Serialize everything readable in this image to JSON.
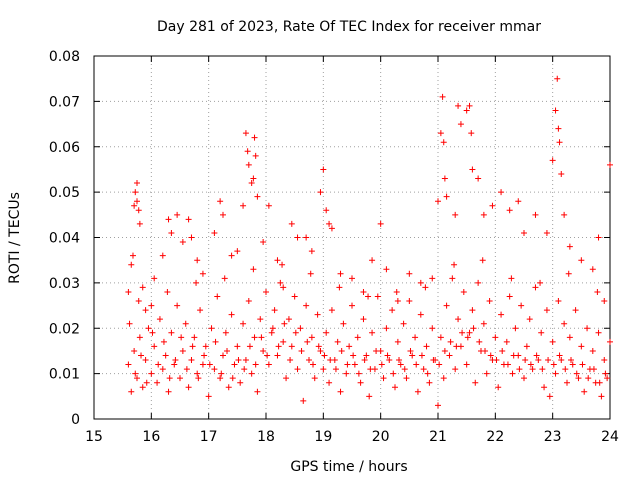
{
  "chart_data": {
    "type": "scatter",
    "title": "Day 281 of 2023, Rate Of TEC Index for receiver mmar",
    "xlabel": "GPS time / hours",
    "ylabel": "ROTI / TECUs",
    "xlim": [
      15,
      24
    ],
    "ylim": [
      0,
      0.08
    ],
    "x_ticks": [
      "15",
      "16",
      "17",
      "18",
      "19",
      "20",
      "21",
      "22",
      "23",
      "24"
    ],
    "y_ticks": [
      "0",
      "0.01",
      "0.02",
      "0.03",
      "0.04",
      "0.05",
      "0.06",
      "0.07",
      "0.08"
    ],
    "grid": true,
    "marker": "+",
    "color": "#ff0000",
    "points": [
      [
        15.6,
        0.028
      ],
      [
        15.62,
        0.021
      ],
      [
        15.65,
        0.034
      ],
      [
        15.7,
        0.047
      ],
      [
        15.72,
        0.05
      ],
      [
        15.75,
        0.052
      ],
      [
        15.78,
        0.046
      ],
      [
        15.8,
        0.043
      ],
      [
        15.75,
        0.048
      ],
      [
        15.68,
        0.036
      ],
      [
        15.85,
        0.029
      ],
      [
        15.9,
        0.024
      ],
      [
        16.0,
        0.025
      ],
      [
        16.05,
        0.031
      ],
      [
        16.2,
        0.036
      ],
      [
        16.3,
        0.044
      ],
      [
        16.35,
        0.041
      ],
      [
        16.45,
        0.045
      ],
      [
        16.55,
        0.039
      ],
      [
        16.65,
        0.044
      ],
      [
        16.7,
        0.04
      ],
      [
        16.8,
        0.035
      ],
      [
        16.9,
        0.032
      ],
      [
        17.1,
        0.041
      ],
      [
        17.2,
        0.048
      ],
      [
        17.25,
        0.045
      ],
      [
        17.4,
        0.036
      ],
      [
        17.5,
        0.037
      ],
      [
        17.6,
        0.047
      ],
      [
        17.65,
        0.063
      ],
      [
        17.7,
        0.056
      ],
      [
        17.68,
        0.059
      ],
      [
        17.75,
        0.052
      ],
      [
        17.8,
        0.062
      ],
      [
        17.82,
        0.058
      ],
      [
        17.85,
        0.049
      ],
      [
        17.78,
        0.053
      ],
      [
        17.95,
        0.039
      ],
      [
        18.05,
        0.047
      ],
      [
        18.2,
        0.035
      ],
      [
        18.3,
        0.029
      ],
      [
        18.45,
        0.043
      ],
      [
        18.55,
        0.04
      ],
      [
        18.7,
        0.04
      ],
      [
        18.8,
        0.037
      ],
      [
        18.95,
        0.05
      ],
      [
        19.0,
        0.055
      ],
      [
        19.05,
        0.046
      ],
      [
        19.1,
        0.043
      ],
      [
        19.15,
        0.042
      ],
      [
        19.3,
        0.032
      ],
      [
        19.5,
        0.031
      ],
      [
        19.7,
        0.028
      ],
      [
        19.85,
        0.035
      ],
      [
        20.0,
        0.043
      ],
      [
        20.1,
        0.033
      ],
      [
        20.3,
        0.026
      ],
      [
        20.5,
        0.032
      ],
      [
        20.7,
        0.03
      ],
      [
        20.9,
        0.031
      ],
      [
        21.0,
        0.048
      ],
      [
        21.05,
        0.063
      ],
      [
        21.08,
        0.071
      ],
      [
        21.1,
        0.061
      ],
      [
        21.12,
        0.053
      ],
      [
        21.15,
        0.049
      ],
      [
        21.3,
        0.045
      ],
      [
        21.35,
        0.069
      ],
      [
        21.4,
        0.065
      ],
      [
        21.5,
        0.068
      ],
      [
        21.55,
        0.069
      ],
      [
        21.58,
        0.063
      ],
      [
        21.6,
        0.055
      ],
      [
        21.7,
        0.053
      ],
      [
        21.8,
        0.045
      ],
      [
        21.95,
        0.047
      ],
      [
        22.1,
        0.05
      ],
      [
        22.25,
        0.046
      ],
      [
        22.4,
        0.048
      ],
      [
        22.5,
        0.041
      ],
      [
        22.7,
        0.045
      ],
      [
        22.9,
        0.041
      ],
      [
        23.0,
        0.057
      ],
      [
        23.05,
        0.068
      ],
      [
        23.08,
        0.075
      ],
      [
        23.1,
        0.064
      ],
      [
        23.12,
        0.061
      ],
      [
        23.15,
        0.054
      ],
      [
        23.2,
        0.045
      ],
      [
        23.3,
        0.038
      ],
      [
        23.5,
        0.035
      ],
      [
        23.7,
        0.033
      ],
      [
        23.8,
        0.04
      ],
      [
        23.9,
        0.026
      ],
      [
        24.0,
        0.056
      ],
      [
        15.6,
        0.012
      ],
      [
        15.65,
        0.006
      ],
      [
        15.7,
        0.015
      ],
      [
        15.75,
        0.009
      ],
      [
        15.8,
        0.018
      ],
      [
        15.85,
        0.007
      ],
      [
        15.9,
        0.013
      ],
      [
        15.95,
        0.02
      ],
      [
        16.0,
        0.01
      ],
      [
        16.05,
        0.016
      ],
      [
        16.1,
        0.008
      ],
      [
        16.15,
        0.022
      ],
      [
        16.2,
        0.011
      ],
      [
        16.25,
        0.014
      ],
      [
        16.3,
        0.006
      ],
      [
        16.35,
        0.019
      ],
      [
        16.4,
        0.012
      ],
      [
        16.45,
        0.025
      ],
      [
        16.5,
        0.009
      ],
      [
        16.55,
        0.015
      ],
      [
        16.6,
        0.021
      ],
      [
        16.65,
        0.007
      ],
      [
        16.7,
        0.013
      ],
      [
        16.75,
        0.018
      ],
      [
        16.8,
        0.01
      ],
      [
        16.85,
        0.024
      ],
      [
        16.9,
        0.012
      ],
      [
        16.95,
        0.016
      ],
      [
        17.0,
        0.005
      ],
      [
        17.05,
        0.02
      ],
      [
        17.1,
        0.011
      ],
      [
        17.15,
        0.027
      ],
      [
        17.2,
        0.009
      ],
      [
        17.25,
        0.014
      ],
      [
        17.3,
        0.019
      ],
      [
        17.35,
        0.007
      ],
      [
        17.4,
        0.023
      ],
      [
        17.45,
        0.012
      ],
      [
        17.5,
        0.016
      ],
      [
        17.55,
        0.008
      ],
      [
        17.6,
        0.021
      ],
      [
        17.65,
        0.013
      ],
      [
        17.7,
        0.026
      ],
      [
        17.75,
        0.01
      ],
      [
        17.8,
        0.018
      ],
      [
        17.85,
        0.006
      ],
      [
        17.9,
        0.022
      ],
      [
        17.95,
        0.015
      ],
      [
        18.0,
        0.028
      ],
      [
        18.05,
        0.012
      ],
      [
        18.1,
        0.019
      ],
      [
        18.15,
        0.024
      ],
      [
        18.2,
        0.014
      ],
      [
        18.25,
        0.03
      ],
      [
        18.3,
        0.017
      ],
      [
        18.35,
        0.009
      ],
      [
        18.4,
        0.022
      ],
      [
        18.45,
        0.016
      ],
      [
        18.5,
        0.027
      ],
      [
        18.55,
        0.011
      ],
      [
        18.6,
        0.02
      ],
      [
        18.65,
        0.004
      ],
      [
        18.7,
        0.025
      ],
      [
        18.75,
        0.013
      ],
      [
        18.8,
        0.018
      ],
      [
        18.85,
        0.009
      ],
      [
        18.9,
        0.023
      ],
      [
        18.95,
        0.015
      ],
      [
        19.0,
        0.011
      ],
      [
        19.05,
        0.019
      ],
      [
        19.1,
        0.008
      ],
      [
        19.15,
        0.024
      ],
      [
        19.2,
        0.013
      ],
      [
        19.25,
        0.017
      ],
      [
        19.3,
        0.006
      ],
      [
        19.35,
        0.021
      ],
      [
        19.4,
        0.01
      ],
      [
        19.45,
        0.016
      ],
      [
        19.5,
        0.025
      ],
      [
        19.55,
        0.012
      ],
      [
        19.6,
        0.018
      ],
      [
        19.65,
        0.008
      ],
      [
        19.7,
        0.022
      ],
      [
        19.75,
        0.014
      ],
      [
        19.8,
        0.005
      ],
      [
        19.85,
        0.019
      ],
      [
        19.9,
        0.011
      ],
      [
        19.95,
        0.027
      ],
      [
        20.0,
        0.015
      ],
      [
        20.05,
        0.009
      ],
      [
        20.1,
        0.02
      ],
      [
        20.15,
        0.013
      ],
      [
        20.2,
        0.024
      ],
      [
        20.25,
        0.007
      ],
      [
        20.3,
        0.017
      ],
      [
        20.35,
        0.012
      ],
      [
        20.4,
        0.021
      ],
      [
        20.45,
        0.009
      ],
      [
        20.5,
        0.026
      ],
      [
        20.55,
        0.014
      ],
      [
        20.6,
        0.018
      ],
      [
        20.65,
        0.006
      ],
      [
        20.7,
        0.023
      ],
      [
        20.75,
        0.011
      ],
      [
        20.8,
        0.016
      ],
      [
        20.85,
        0.008
      ],
      [
        20.9,
        0.02
      ],
      [
        20.95,
        0.013
      ],
      [
        21.0,
        0.003
      ],
      [
        21.05,
        0.018
      ],
      [
        21.1,
        0.009
      ],
      [
        21.15,
        0.025
      ],
      [
        21.2,
        0.014
      ],
      [
        21.25,
        0.031
      ],
      [
        21.3,
        0.011
      ],
      [
        21.35,
        0.022
      ],
      [
        21.4,
        0.016
      ],
      [
        21.45,
        0.028
      ],
      [
        21.5,
        0.012
      ],
      [
        21.55,
        0.019
      ],
      [
        21.6,
        0.024
      ],
      [
        21.65,
        0.008
      ],
      [
        21.7,
        0.03
      ],
      [
        21.75,
        0.015
      ],
      [
        21.8,
        0.021
      ],
      [
        21.85,
        0.01
      ],
      [
        21.9,
        0.026
      ],
      [
        21.95,
        0.013
      ],
      [
        22.0,
        0.018
      ],
      [
        22.05,
        0.007
      ],
      [
        22.1,
        0.023
      ],
      [
        22.15,
        0.012
      ],
      [
        22.2,
        0.017
      ],
      [
        22.25,
        0.027
      ],
      [
        22.3,
        0.01
      ],
      [
        22.35,
        0.02
      ],
      [
        22.4,
        0.014
      ],
      [
        22.45,
        0.025
      ],
      [
        22.5,
        0.009
      ],
      [
        22.55,
        0.016
      ],
      [
        22.6,
        0.022
      ],
      [
        22.65,
        0.011
      ],
      [
        22.7,
        0.029
      ],
      [
        22.75,
        0.013
      ],
      [
        22.8,
        0.019
      ],
      [
        22.85,
        0.007
      ],
      [
        22.9,
        0.024
      ],
      [
        22.95,
        0.005
      ],
      [
        23.0,
        0.017
      ],
      [
        23.05,
        0.01
      ],
      [
        23.1,
        0.026
      ],
      [
        23.15,
        0.013
      ],
      [
        23.2,
        0.021
      ],
      [
        23.25,
        0.008
      ],
      [
        23.3,
        0.018
      ],
      [
        23.35,
        0.012
      ],
      [
        23.4,
        0.024
      ],
      [
        23.45,
        0.009
      ],
      [
        23.5,
        0.016
      ],
      [
        23.55,
        0.006
      ],
      [
        23.6,
        0.02
      ],
      [
        23.65,
        0.011
      ],
      [
        23.7,
        0.015
      ],
      [
        23.75,
        0.008
      ],
      [
        23.8,
        0.019
      ],
      [
        23.85,
        0.005
      ],
      [
        23.9,
        0.013
      ],
      [
        23.95,
        0.009
      ],
      [
        24.0,
        0.017
      ],
      [
        15.72,
        0.01
      ],
      [
        15.82,
        0.014
      ],
      [
        15.92,
        0.008
      ],
      [
        16.02,
        0.019
      ],
      [
        16.12,
        0.012
      ],
      [
        16.22,
        0.017
      ],
      [
        16.32,
        0.009
      ],
      [
        16.42,
        0.013
      ],
      [
        16.52,
        0.018
      ],
      [
        16.62,
        0.011
      ],
      [
        16.72,
        0.016
      ],
      [
        16.82,
        0.009
      ],
      [
        16.92,
        0.014
      ],
      [
        17.02,
        0.012
      ],
      [
        17.12,
        0.017
      ],
      [
        17.22,
        0.01
      ],
      [
        17.32,
        0.015
      ],
      [
        17.42,
        0.009
      ],
      [
        17.52,
        0.013
      ],
      [
        17.62,
        0.011
      ],
      [
        17.72,
        0.016
      ],
      [
        17.82,
        0.012
      ],
      [
        17.92,
        0.018
      ],
      [
        18.02,
        0.014
      ],
      [
        18.12,
        0.02
      ],
      [
        18.22,
        0.016
      ],
      [
        18.32,
        0.021
      ],
      [
        18.42,
        0.013
      ],
      [
        18.52,
        0.019
      ],
      [
        18.62,
        0.015
      ],
      [
        18.72,
        0.017
      ],
      [
        18.82,
        0.012
      ],
      [
        18.92,
        0.016
      ],
      [
        19.02,
        0.014
      ],
      [
        19.12,
        0.013
      ],
      [
        19.22,
        0.011
      ],
      [
        19.32,
        0.015
      ],
      [
        19.42,
        0.012
      ],
      [
        19.52,
        0.014
      ],
      [
        19.62,
        0.01
      ],
      [
        19.72,
        0.013
      ],
      [
        19.82,
        0.011
      ],
      [
        19.92,
        0.015
      ],
      [
        20.02,
        0.012
      ],
      [
        20.12,
        0.014
      ],
      [
        20.22,
        0.01
      ],
      [
        20.32,
        0.013
      ],
      [
        20.42,
        0.011
      ],
      [
        20.52,
        0.015
      ],
      [
        20.62,
        0.012
      ],
      [
        20.72,
        0.014
      ],
      [
        20.82,
        0.01
      ],
      [
        20.92,
        0.013
      ],
      [
        21.02,
        0.012
      ],
      [
        21.12,
        0.015
      ],
      [
        21.22,
        0.017
      ],
      [
        21.32,
        0.016
      ],
      [
        21.42,
        0.019
      ],
      [
        21.52,
        0.018
      ],
      [
        21.62,
        0.02
      ],
      [
        21.72,
        0.017
      ],
      [
        21.82,
        0.015
      ],
      [
        21.92,
        0.014
      ],
      [
        22.02,
        0.013
      ],
      [
        22.12,
        0.015
      ],
      [
        22.22,
        0.012
      ],
      [
        22.32,
        0.014
      ],
      [
        22.42,
        0.011
      ],
      [
        22.52,
        0.013
      ],
      [
        22.62,
        0.012
      ],
      [
        22.72,
        0.014
      ],
      [
        22.82,
        0.011
      ],
      [
        22.92,
        0.013
      ],
      [
        23.02,
        0.012
      ],
      [
        23.12,
        0.014
      ],
      [
        23.22,
        0.011
      ],
      [
        23.32,
        0.013
      ],
      [
        23.42,
        0.01
      ],
      [
        23.52,
        0.012
      ],
      [
        23.62,
        0.009
      ],
      [
        23.72,
        0.011
      ],
      [
        23.82,
        0.008
      ],
      [
        23.92,
        0.01
      ],
      [
        15.78,
        0.026
      ],
      [
        16.28,
        0.028
      ],
      [
        16.78,
        0.03
      ],
      [
        17.28,
        0.031
      ],
      [
        17.78,
        0.033
      ],
      [
        18.28,
        0.034
      ],
      [
        18.78,
        0.032
      ],
      [
        19.28,
        0.029
      ],
      [
        19.78,
        0.027
      ],
      [
        20.28,
        0.028
      ],
      [
        20.78,
        0.029
      ],
      [
        21.28,
        0.034
      ],
      [
        21.78,
        0.035
      ],
      [
        22.28,
        0.031
      ],
      [
        22.78,
        0.03
      ],
      [
        23.28,
        0.032
      ],
      [
        23.78,
        0.028
      ]
    ]
  }
}
